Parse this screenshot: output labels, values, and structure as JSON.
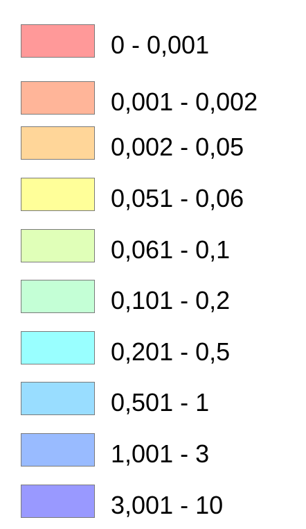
{
  "legend": {
    "items": [
      {
        "label": "0 - 0,001",
        "color": "#FF9999"
      },
      {
        "label": "0,001 - 0,002",
        "color": "#FFB599"
      },
      {
        "label": "0,002 - 0,05",
        "color": "#FFD699"
      },
      {
        "label": "0,051 - 0,06",
        "color": "#FFFF99"
      },
      {
        "label": "0,061 - 0,1",
        "color": "#E0FFB8"
      },
      {
        "label": "0,101 - 0,2",
        "color": "#C4FFD6"
      },
      {
        "label": "0,201 - 0,5",
        "color": "#99FFFF"
      },
      {
        "label": "0,501 - 1",
        "color": "#99DDFF"
      },
      {
        "label": "1,001 - 3",
        "color": "#99BBFF"
      },
      {
        "label": "3,001 - 10",
        "color": "#9999FF"
      }
    ]
  }
}
